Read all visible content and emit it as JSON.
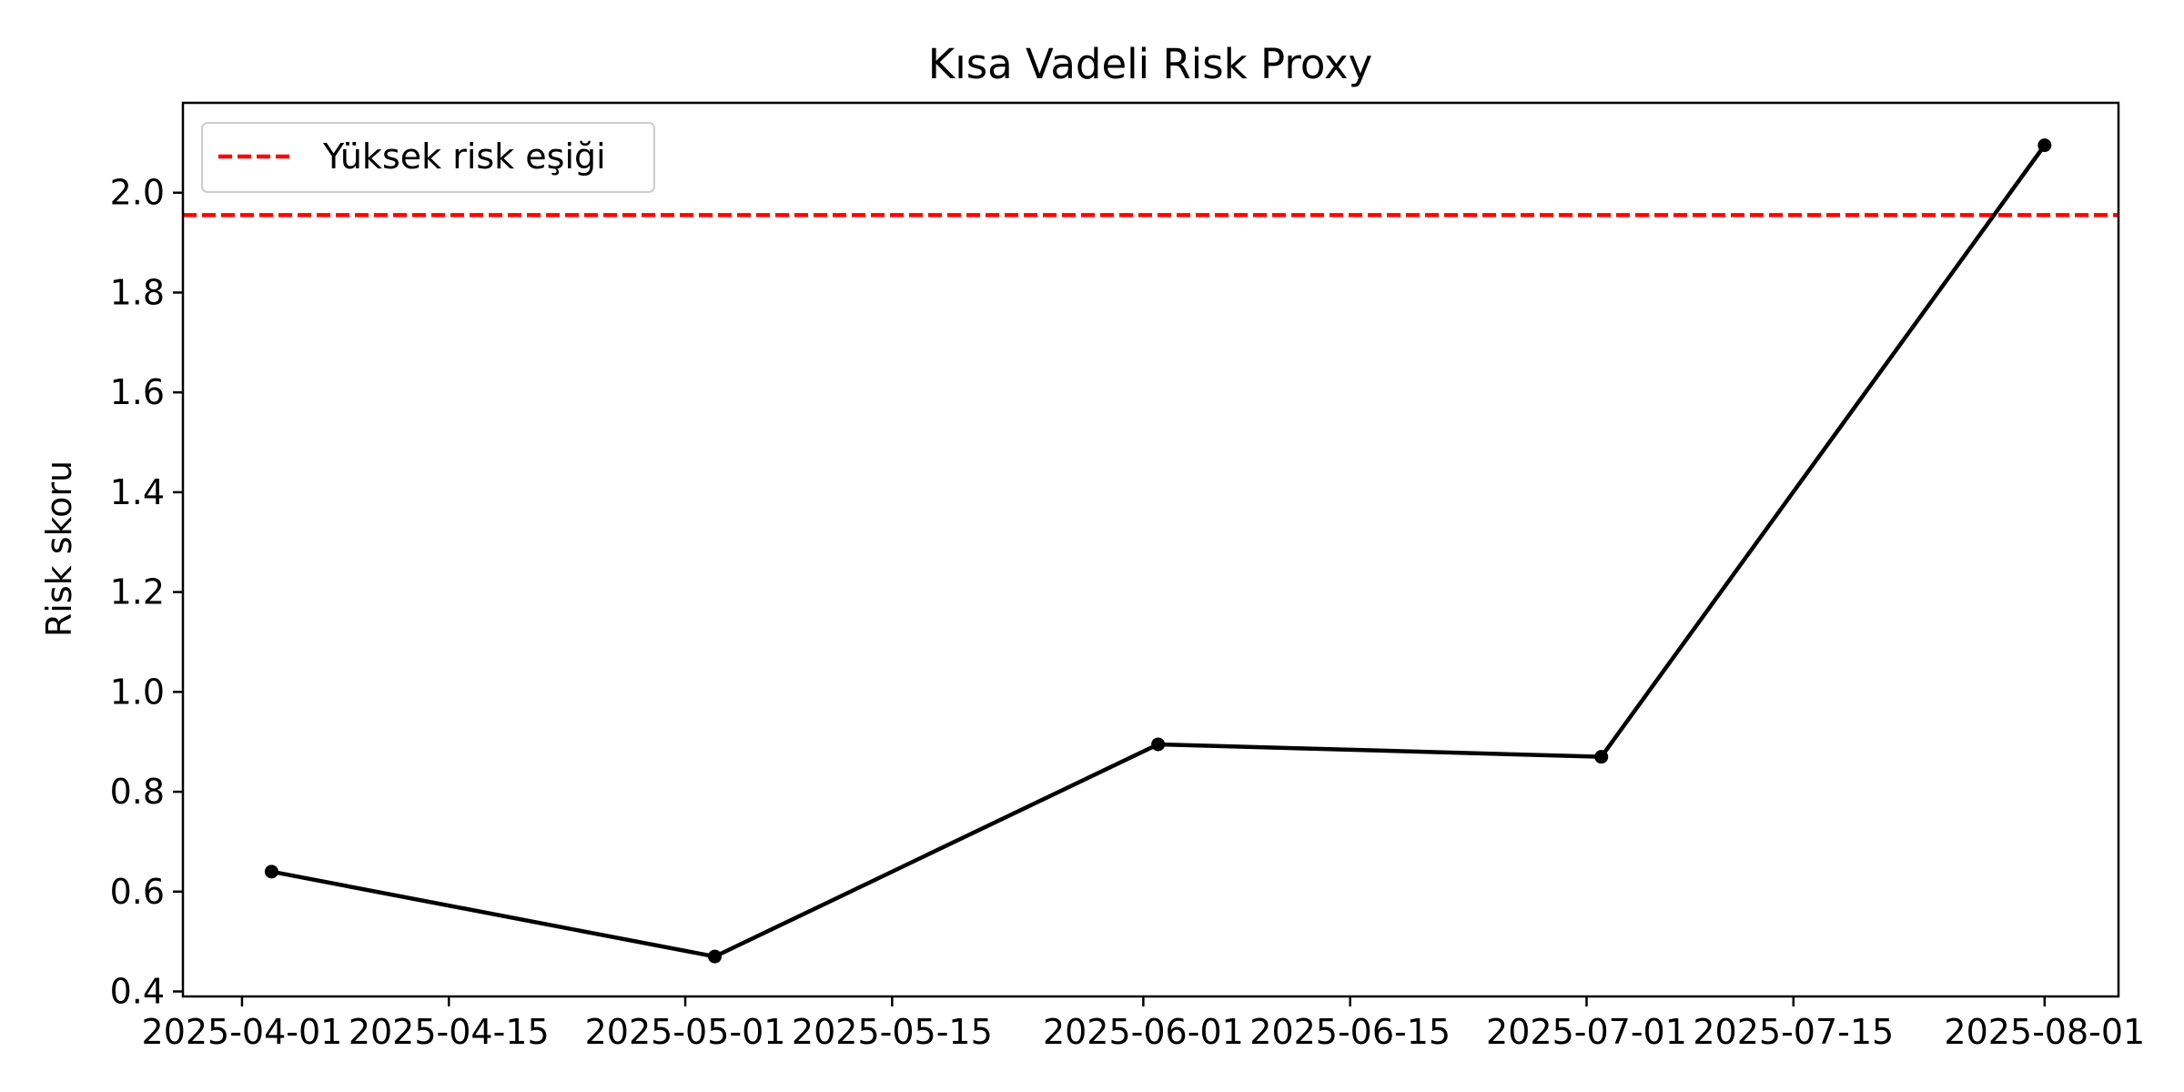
{
  "chart_data": {
    "type": "line",
    "title": "Kısa Vadeli Risk Proxy",
    "xlabel": "",
    "ylabel": "Risk skoru",
    "x": [
      "2025-04-03",
      "2025-05-03",
      "2025-06-02",
      "2025-07-02",
      "2025-08-01"
    ],
    "series": [
      {
        "values": [
          0.64,
          0.47,
          0.895,
          0.87,
          2.095
        ],
        "color": "#000000",
        "marker": "circle"
      }
    ],
    "reference_lines": [
      {
        "name": "Yüksek risk eşiği",
        "y": 1.955,
        "color": "#ff0000",
        "style": "dashed"
      }
    ],
    "x_ticks": [
      "2025-04-01",
      "2025-04-15",
      "2025-05-01",
      "2025-05-15",
      "2025-06-01",
      "2025-06-15",
      "2025-07-01",
      "2025-07-15",
      "2025-08-01"
    ],
    "y_ticks": [
      "0.4",
      "0.6",
      "0.8",
      "1.0",
      "1.2",
      "1.4",
      "1.6",
      "1.8",
      "2.0"
    ],
    "xlim": [
      "2025-03-28",
      "2025-08-06"
    ],
    "ylim": [
      0.39,
      2.18
    ],
    "grid": false,
    "legend_position": "top-left"
  }
}
